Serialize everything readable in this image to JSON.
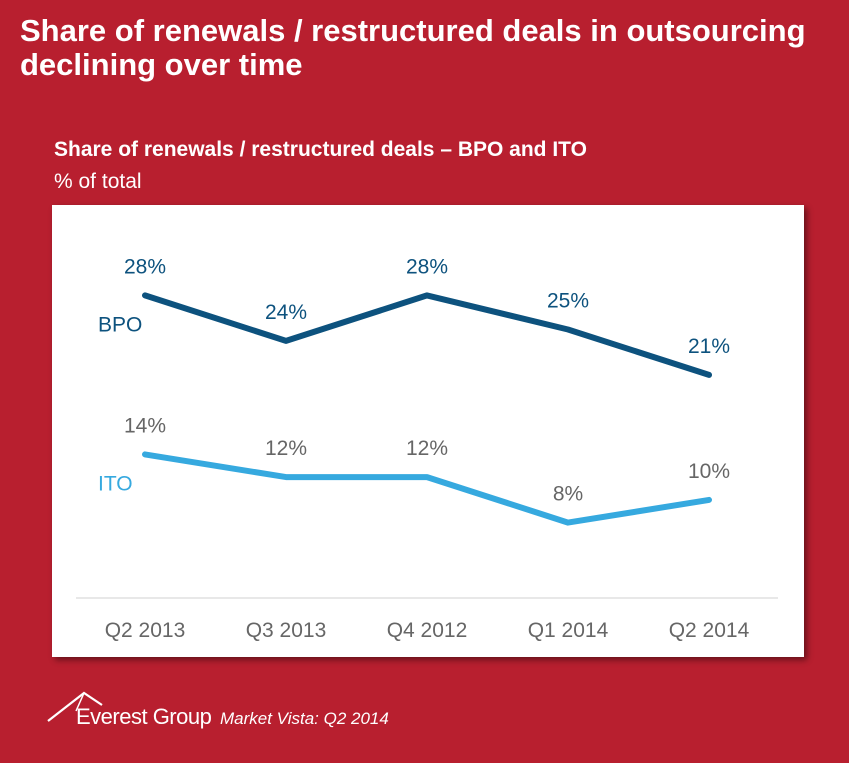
{
  "title": "Share of renewals / restructured deals in outsourcing declining over time",
  "chart_data": {
    "type": "line",
    "title": "Share of renewals / restructured deals – BPO and ITO",
    "unit_label": "% of total",
    "categories": [
      "Q2 2013",
      "Q3 2013",
      "Q4 2012",
      "Q1 2014",
      "Q2 2014"
    ],
    "series": [
      {
        "name": "BPO",
        "values": [
          28,
          24,
          28,
          25,
          21
        ],
        "labels": [
          "28%",
          "24%",
          "28%",
          "25%",
          "21%"
        ],
        "color": "#0d527e"
      },
      {
        "name": "ITO",
        "values": [
          14,
          12,
          12,
          8,
          10
        ],
        "labels": [
          "14%",
          "12%",
          "12%",
          "8%",
          "10%"
        ],
        "color": "#36a9df"
      }
    ],
    "ylim": [
      4,
      32
    ],
    "grid": false,
    "legend": "inline-left"
  },
  "colors": {
    "background": "#b81f2f",
    "label_gray": "#666666",
    "axis": "#d0d0d0"
  },
  "footer": {
    "brand": "Everest Group",
    "report": "Market Vista: Q2 2014",
    "logo_icon": "mountain-peak-icon"
  }
}
